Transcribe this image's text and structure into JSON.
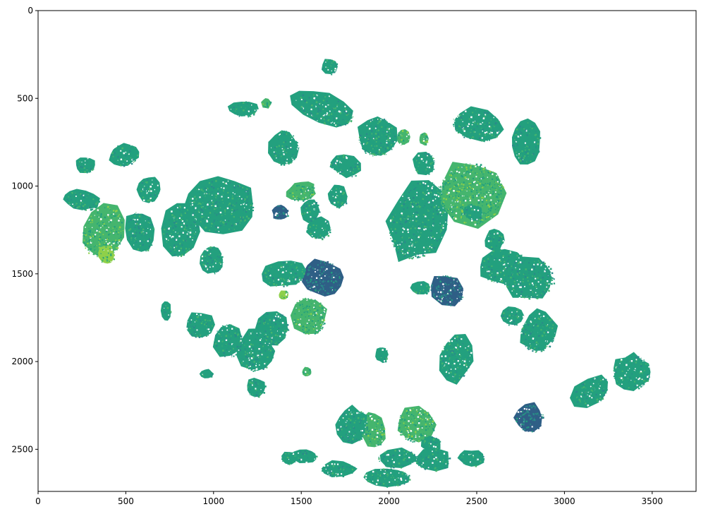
{
  "chart_data": {
    "type": "heatmap",
    "title": "",
    "xlabel": "",
    "ylabel": "",
    "xlim": [
      0,
      3750
    ],
    "ylim": [
      2740,
      0
    ],
    "y_inverted": true,
    "x_ticks": [
      0,
      500,
      1000,
      1500,
      2000,
      2500,
      3000,
      3500
    ],
    "x_tick_labels": [
      "0",
      "500",
      "1000",
      "1500",
      "2000",
      "2500",
      "3000",
      "3500"
    ],
    "y_ticks": [
      0,
      500,
      1000,
      1500,
      2000,
      2500
    ],
    "y_tick_labels": [
      "0",
      "500",
      "1000",
      "1500",
      "2000",
      "2500"
    ],
    "colormap": "viridis",
    "colors": {
      "dark": "#2f5f86",
      "mid": "#2a8a8a",
      "teal": "#23a07e",
      "green": "#45b56e",
      "light": "#8fd04a",
      "background": "#ffffff"
    },
    "grains": [
      {
        "cx": 1040,
        "cy": 1110,
        "rx": 210,
        "ry": 170,
        "rot": -5,
        "tone": "teal"
      },
      {
        "cx": 1630,
        "cy": 555,
        "rx": 200,
        "ry": 90,
        "rot": 20,
        "tone": "teal"
      },
      {
        "cx": 1930,
        "cy": 720,
        "rx": 120,
        "ry": 130,
        "rot": 10,
        "tone": "teal"
      },
      {
        "cx": 1750,
        "cy": 880,
        "rx": 100,
        "ry": 70,
        "rot": 20,
        "tone": "teal"
      },
      {
        "cx": 1400,
        "cy": 780,
        "rx": 90,
        "ry": 110,
        "rot": 0,
        "tone": "teal"
      },
      {
        "cx": 1660,
        "cy": 320,
        "rx": 50,
        "ry": 50,
        "rot": 0,
        "tone": "teal"
      },
      {
        "cx": 2170,
        "cy": 1190,
        "rx": 180,
        "ry": 260,
        "rot": 20,
        "tone": "teal"
      },
      {
        "cx": 2470,
        "cy": 1040,
        "rx": 210,
        "ry": 200,
        "rot": 0,
        "tone": "green"
      },
      {
        "cx": 2500,
        "cy": 650,
        "rx": 160,
        "ry": 100,
        "rot": 10,
        "tone": "teal"
      },
      {
        "cx": 2780,
        "cy": 750,
        "rx": 90,
        "ry": 130,
        "rot": 0,
        "tone": "teal"
      },
      {
        "cx": 2660,
        "cy": 1460,
        "rx": 160,
        "ry": 110,
        "rot": 0,
        "tone": "teal"
      },
      {
        "cx": 2800,
        "cy": 1530,
        "rx": 160,
        "ry": 130,
        "rot": -5,
        "tone": "teal"
      },
      {
        "cx": 2330,
        "cy": 1590,
        "rx": 110,
        "ry": 90,
        "rot": 30,
        "tone": "dark"
      },
      {
        "cx": 2480,
        "cy": 1150,
        "rx": 60,
        "ry": 50,
        "rot": 0,
        "tone": "teal"
      },
      {
        "cx": 2600,
        "cy": 1310,
        "rx": 60,
        "ry": 70,
        "rot": 0,
        "tone": "teal"
      },
      {
        "cx": 2850,
        "cy": 1830,
        "rx": 110,
        "ry": 130,
        "rot": 15,
        "tone": "teal"
      },
      {
        "cx": 2700,
        "cy": 1740,
        "rx": 70,
        "ry": 60,
        "rot": 0,
        "tone": "teal"
      },
      {
        "cx": 2380,
        "cy": 1980,
        "rx": 100,
        "ry": 150,
        "rot": 10,
        "tone": "teal"
      },
      {
        "cx": 2800,
        "cy": 2320,
        "rx": 90,
        "ry": 90,
        "rot": 0,
        "tone": "dark"
      },
      {
        "cx": 3150,
        "cy": 2170,
        "rx": 130,
        "ry": 80,
        "rot": -30,
        "tone": "teal"
      },
      {
        "cx": 3380,
        "cy": 2060,
        "rx": 120,
        "ry": 110,
        "rot": 0,
        "tone": "teal"
      },
      {
        "cx": 1620,
        "cy": 1520,
        "rx": 120,
        "ry": 110,
        "rot": 0,
        "tone": "dark"
      },
      {
        "cx": 1400,
        "cy": 1500,
        "rx": 140,
        "ry": 80,
        "rot": -10,
        "tone": "teal"
      },
      {
        "cx": 1540,
        "cy": 1740,
        "rx": 110,
        "ry": 120,
        "rot": -20,
        "tone": "green"
      },
      {
        "cx": 1330,
        "cy": 1810,
        "rx": 110,
        "ry": 110,
        "rot": 0,
        "tone": "teal"
      },
      {
        "cx": 1240,
        "cy": 1940,
        "rx": 110,
        "ry": 130,
        "rot": 0,
        "tone": "teal"
      },
      {
        "cx": 1080,
        "cy": 1880,
        "rx": 90,
        "ry": 110,
        "rot": 0,
        "tone": "teal"
      },
      {
        "cx": 920,
        "cy": 1790,
        "rx": 90,
        "ry": 80,
        "rot": 0,
        "tone": "teal"
      },
      {
        "cx": 810,
        "cy": 1250,
        "rx": 110,
        "ry": 170,
        "rot": 5,
        "tone": "teal"
      },
      {
        "cx": 990,
        "cy": 1420,
        "rx": 70,
        "ry": 90,
        "rot": 0,
        "tone": "teal"
      },
      {
        "cx": 580,
        "cy": 1260,
        "rx": 90,
        "ry": 130,
        "rot": -10,
        "tone": "teal"
      },
      {
        "cx": 630,
        "cy": 1020,
        "rx": 70,
        "ry": 80,
        "rot": 0,
        "tone": "teal"
      },
      {
        "cx": 370,
        "cy": 1260,
        "rx": 130,
        "ry": 170,
        "rot": 15,
        "tone": "green"
      },
      {
        "cx": 250,
        "cy": 1080,
        "rx": 110,
        "ry": 60,
        "rot": 10,
        "tone": "teal"
      },
      {
        "cx": 490,
        "cy": 820,
        "rx": 90,
        "ry": 70,
        "rot": -10,
        "tone": "teal"
      },
      {
        "cx": 270,
        "cy": 880,
        "rx": 60,
        "ry": 50,
        "rot": 0,
        "tone": "teal"
      },
      {
        "cx": 1170,
        "cy": 560,
        "rx": 90,
        "ry": 50,
        "rot": 0,
        "tone": "teal"
      },
      {
        "cx": 1500,
        "cy": 1030,
        "rx": 90,
        "ry": 60,
        "rot": -10,
        "tone": "green"
      },
      {
        "cx": 1380,
        "cy": 1150,
        "rx": 50,
        "ry": 50,
        "rot": 0,
        "tone": "dark"
      },
      {
        "cx": 1600,
        "cy": 1240,
        "rx": 80,
        "ry": 70,
        "rot": 0,
        "tone": "teal"
      },
      {
        "cx": 1550,
        "cy": 1140,
        "rx": 60,
        "ry": 70,
        "rot": 0,
        "tone": "teal"
      },
      {
        "cx": 2150,
        "cy": 2360,
        "rx": 120,
        "ry": 110,
        "rot": 0,
        "tone": "green"
      },
      {
        "cx": 1910,
        "cy": 2390,
        "rx": 70,
        "ry": 110,
        "rot": -10,
        "tone": "green"
      },
      {
        "cx": 1790,
        "cy": 2360,
        "rx": 100,
        "ry": 110,
        "rot": 0,
        "tone": "teal"
      },
      {
        "cx": 2050,
        "cy": 2550,
        "rx": 130,
        "ry": 60,
        "rot": 0,
        "tone": "teal"
      },
      {
        "cx": 2250,
        "cy": 2560,
        "rx": 110,
        "ry": 70,
        "rot": 0,
        "tone": "teal"
      },
      {
        "cx": 1990,
        "cy": 2660,
        "rx": 150,
        "ry": 60,
        "rot": 0,
        "tone": "teal"
      },
      {
        "cx": 1710,
        "cy": 2610,
        "rx": 110,
        "ry": 50,
        "rot": 0,
        "tone": "teal"
      },
      {
        "cx": 1520,
        "cy": 2540,
        "rx": 80,
        "ry": 40,
        "rot": 0,
        "tone": "teal"
      },
      {
        "cx": 2470,
        "cy": 2550,
        "rx": 80,
        "ry": 50,
        "rot": 0,
        "tone": "teal"
      },
      {
        "cx": 1430,
        "cy": 2550,
        "rx": 50,
        "ry": 40,
        "rot": 0,
        "tone": "teal"
      },
      {
        "cx": 2200,
        "cy": 730,
        "rx": 30,
        "ry": 40,
        "rot": 0,
        "tone": "green"
      },
      {
        "cx": 2080,
        "cy": 720,
        "rx": 40,
        "ry": 50,
        "rot": 0,
        "tone": "green"
      },
      {
        "cx": 2240,
        "cy": 2470,
        "rx": 60,
        "ry": 50,
        "rot": 0,
        "tone": "teal"
      },
      {
        "cx": 1300,
        "cy": 530,
        "rx": 30,
        "ry": 30,
        "rot": 0,
        "tone": "green"
      },
      {
        "cx": 2200,
        "cy": 870,
        "rx": 70,
        "ry": 70,
        "rot": 0,
        "tone": "teal"
      },
      {
        "cx": 1960,
        "cy": 1960,
        "rx": 40,
        "ry": 50,
        "rot": 0,
        "tone": "teal"
      },
      {
        "cx": 960,
        "cy": 2070,
        "rx": 40,
        "ry": 30,
        "rot": 0,
        "tone": "teal"
      },
      {
        "cx": 1530,
        "cy": 2060,
        "rx": 30,
        "ry": 30,
        "rot": 0,
        "tone": "green"
      },
      {
        "cx": 1710,
        "cy": 1060,
        "rx": 60,
        "ry": 70,
        "rot": 0,
        "tone": "teal"
      },
      {
        "cx": 1400,
        "cy": 1620,
        "rx": 30,
        "ry": 30,
        "rot": 0,
        "tone": "light"
      },
      {
        "cx": 390,
        "cy": 1390,
        "rx": 50,
        "ry": 60,
        "rot": 0,
        "tone": "light"
      },
      {
        "cx": 1240,
        "cy": 2150,
        "rx": 60,
        "ry": 60,
        "rot": 0,
        "tone": "teal"
      },
      {
        "cx": 730,
        "cy": 1710,
        "rx": 30,
        "ry": 60,
        "rot": 0,
        "tone": "teal"
      },
      {
        "cx": 2180,
        "cy": 1580,
        "rx": 60,
        "ry": 40,
        "rot": 0,
        "tone": "teal"
      }
    ]
  }
}
